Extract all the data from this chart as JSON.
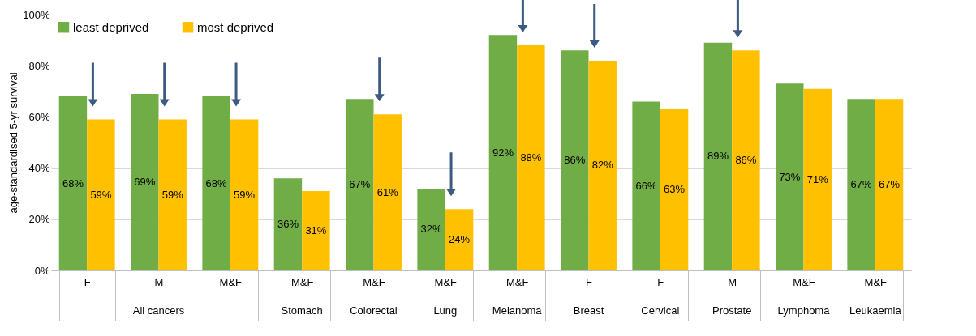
{
  "chart_data": {
    "type": "bar",
    "ylabel": "age-standardised 5-yr survival",
    "categories": [
      "F",
      "M",
      "M&F",
      "M&F",
      "M&F",
      "M&F",
      "M&F",
      "F",
      "F",
      "M",
      "M&F",
      "M&F"
    ],
    "annotations": [
      "All cancers",
      "Stomach",
      "Colorectal",
      "Lung",
      "Melanoma",
      "Breast",
      "Cervical",
      "Prostate",
      "Lymphoma",
      "Leukaemia"
    ],
    "series": [
      {
        "name": "least deprived",
        "color": "#70ad47",
        "values": [
          68,
          69,
          68,
          36,
          67,
          32,
          92,
          86,
          66,
          89,
          73,
          67
        ],
        "value_labels": [
          "68%",
          "69%",
          "68%",
          "36%",
          "67%",
          "32%",
          "92%",
          "86%",
          "66%",
          "89%",
          "73%",
          "67%"
        ]
      },
      {
        "name": "most deprived",
        "color": "#ffc000",
        "values": [
          59,
          59,
          59,
          31,
          61,
          24,
          88,
          82,
          63,
          86,
          71,
          67
        ],
        "value_labels": [
          "59%",
          "59%",
          "59%",
          "31%",
          "61%",
          "24%",
          "88%",
          "82%",
          "63%",
          "86%",
          "71%",
          "67%"
        ]
      }
    ],
    "ylim": [
      0,
      100
    ],
    "yticks": [
      {
        "value": 0,
        "label": "0%"
      },
      {
        "value": 20,
        "label": "20%"
      },
      {
        "value": 40,
        "label": "40%"
      },
      {
        "value": 60,
        "label": "60%"
      },
      {
        "value": 80,
        "label": "80%"
      },
      {
        "value": 100,
        "label": "100%"
      }
    ],
    "grid": "y",
    "legend": "top left"
  }
}
